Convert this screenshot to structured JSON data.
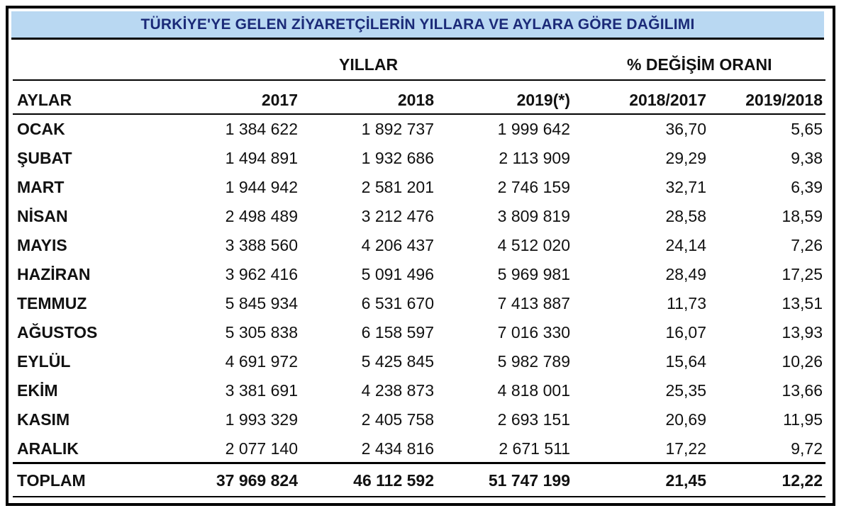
{
  "title": "TÜRKİYE'YE GELEN ZİYARETÇİLERİN YILLARA VE AYLARA GÖRE DAĞILIMI",
  "group_headers": {
    "years": "YILLAR",
    "change": "% DEĞİŞİM ORANI"
  },
  "columns": [
    "AYLAR",
    "2017",
    "2018",
    "2019(*)",
    "2018/2017",
    "2019/2018"
  ],
  "rows": [
    [
      "OCAK",
      "1 384 622",
      "1 892 737",
      "1 999 642",
      "36,70",
      "5,65"
    ],
    [
      "ŞUBAT",
      "1 494 891",
      "1 932 686",
      "2 113 909",
      "29,29",
      "9,38"
    ],
    [
      "MART",
      "1 944 942",
      "2 581 201",
      "2 746 159",
      "32,71",
      "6,39"
    ],
    [
      "NİSAN",
      "2 498 489",
      "3 212 476",
      "3 809 819",
      "28,58",
      "18,59"
    ],
    [
      "MAYIS",
      "3 388 560",
      "4 206 437",
      "4 512 020",
      "24,14",
      "7,26"
    ],
    [
      "HAZİRAN",
      "3 962 416",
      "5 091 496",
      "5 969 981",
      "28,49",
      "17,25"
    ],
    [
      "TEMMUZ",
      "5 845 934",
      "6 531 670",
      "7 413 887",
      "11,73",
      "13,51"
    ],
    [
      "AĞUSTOS",
      "5 305 838",
      "6 158 597",
      "7 016 330",
      "16,07",
      "13,93"
    ],
    [
      "EYLÜL",
      "4 691 972",
      "5 425 845",
      "5 982 789",
      "15,64",
      "10,26"
    ],
    [
      "EKİM",
      "3 381 691",
      "4 238 873",
      "4 818 001",
      "25,35",
      "13,66"
    ],
    [
      "KASIM",
      "1 993 329",
      "2 405 758",
      "2 693 151",
      "20,69",
      "11,95"
    ],
    [
      "ARALIK",
      "2 077 140",
      "2 434 816",
      "2 671 511",
      "17,22",
      "9,72"
    ]
  ],
  "total": [
    "TOPLAM",
    "37 969 824",
    "46 112 592",
    "51 747 199",
    "21,45",
    "12,22"
  ]
}
